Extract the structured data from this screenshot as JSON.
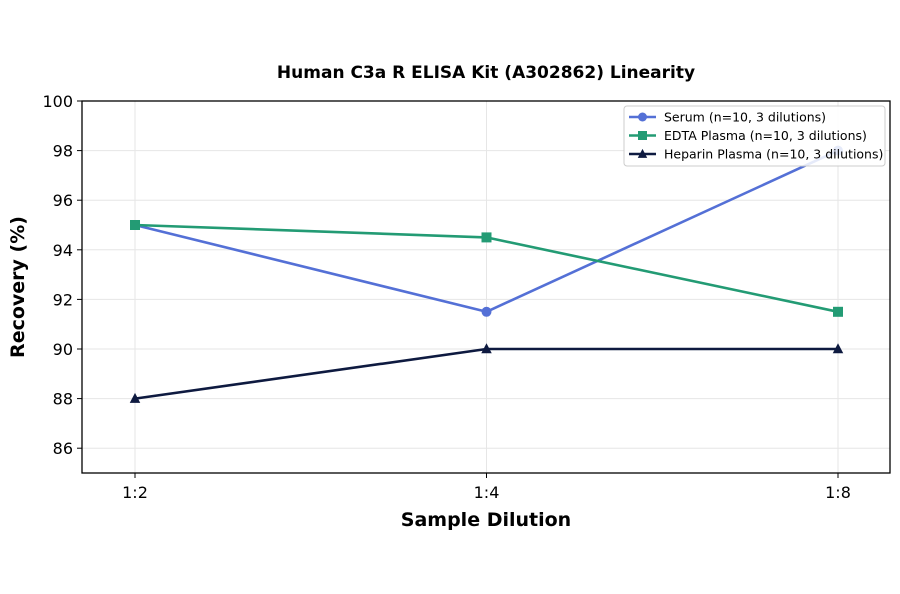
{
  "chart_data": {
    "type": "line",
    "title": "Human C3a R ELISA Kit (A302862) Linearity",
    "xlabel": "Sample Dilution",
    "ylabel": "Recovery (%)",
    "categories": [
      "1:2",
      "1:4",
      "1:8"
    ],
    "ylim": [
      85,
      100
    ],
    "yticks": [
      86,
      88,
      90,
      92,
      94,
      96,
      98,
      100
    ],
    "grid": true,
    "legend_position": "top-right",
    "series": [
      {
        "name": "Serum (n=10, 3 dilutions)",
        "values": [
          95,
          91.5,
          98
        ],
        "color": "#5470d6",
        "marker": "circle"
      },
      {
        "name": "EDTA Plasma (n=10, 3 dilutions)",
        "values": [
          95,
          94.5,
          91.5
        ],
        "color": "#239b74",
        "marker": "square"
      },
      {
        "name": "Heparin Plasma (n=10, 3 dilutions)",
        "values": [
          88,
          90,
          90
        ],
        "color": "#0e1a40",
        "marker": "triangle"
      }
    ]
  }
}
